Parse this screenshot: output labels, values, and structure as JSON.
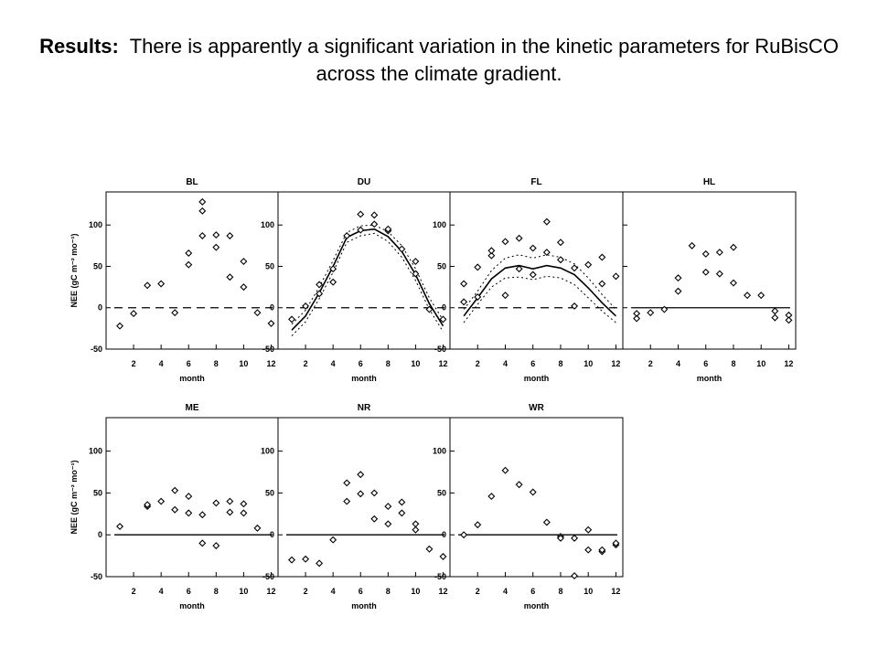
{
  "slide": {
    "title_lead": "Results:",
    "title_text": "There is apparently a significant variation in the kinetic parameters for RuBisCO across the climate gradient."
  },
  "chart_data": [
    {
      "type": "scatter",
      "title": "BL",
      "xlabel": "month",
      "ylabel": "NEE (gC m⁻² mo⁻¹)",
      "xlim": [
        0,
        12.5
      ],
      "ylim": [
        -50,
        140
      ],
      "xticks": [
        "2",
        "4",
        "6",
        "8",
        "10",
        "12"
      ],
      "yticks": [
        "-50",
        "0",
        "50",
        "100"
      ],
      "zero_line": "dashed",
      "points": [
        [
          1,
          -22
        ],
        [
          2,
          -7
        ],
        [
          3,
          27
        ],
        [
          4,
          29
        ],
        [
          5,
          -6
        ],
        [
          6,
          52
        ],
        [
          6,
          66
        ],
        [
          7,
          87
        ],
        [
          7,
          117
        ],
        [
          7,
          128
        ],
        [
          8,
          73
        ],
        [
          8,
          88
        ],
        [
          9,
          37
        ],
        [
          9,
          87
        ],
        [
          10,
          25
        ],
        [
          10,
          56
        ],
        [
          11,
          -6
        ],
        [
          12,
          -19
        ]
      ]
    },
    {
      "type": "scatter",
      "title": "DU",
      "xlabel": "month",
      "ylabel": "",
      "xlim": [
        0,
        12.5
      ],
      "ylim": [
        -50,
        140
      ],
      "xticks": [
        "2",
        "4",
        "6",
        "8",
        "10",
        "12"
      ],
      "yticks": [
        "-50",
        "0",
        "50",
        "100"
      ],
      "zero_line": "dashed",
      "points": [
        [
          1,
          -14
        ],
        [
          2,
          2
        ],
        [
          3,
          17
        ],
        [
          3,
          28
        ],
        [
          4,
          31
        ],
        [
          4,
          47
        ],
        [
          5,
          87
        ],
        [
          6,
          94
        ],
        [
          6,
          113
        ],
        [
          7,
          101
        ],
        [
          7,
          112
        ],
        [
          8,
          93
        ],
        [
          8,
          95
        ],
        [
          9,
          71
        ],
        [
          10,
          41
        ],
        [
          10,
          56
        ],
        [
          11,
          -2
        ],
        [
          12,
          -14
        ]
      ],
      "curves": [
        {
          "style": "solid",
          "x": [
            1,
            2,
            3,
            4,
            5,
            6,
            7,
            8,
            9,
            10,
            11,
            12
          ],
          "y": [
            -27,
            -10,
            18,
            50,
            85,
            93,
            95,
            86,
            68,
            40,
            5,
            -22
          ]
        },
        {
          "style": "dotted",
          "x": [
            1,
            2,
            3,
            4,
            5,
            6,
            7,
            8,
            9,
            10,
            11,
            12
          ],
          "y": [
            -20,
            -3,
            25,
            57,
            91,
            99,
            100,
            92,
            75,
            47,
            12,
            -15
          ]
        },
        {
          "style": "dotted",
          "x": [
            1,
            2,
            3,
            4,
            5,
            6,
            7,
            8,
            9,
            10,
            11,
            12
          ],
          "y": [
            -34,
            -17,
            11,
            43,
            79,
            87,
            90,
            80,
            61,
            33,
            -2,
            -29
          ]
        }
      ]
    },
    {
      "type": "scatter",
      "title": "FL",
      "xlabel": "month",
      "ylabel": "",
      "xlim": [
        0,
        12.5
      ],
      "ylim": [
        -50,
        140
      ],
      "xticks": [
        "2",
        "4",
        "6",
        "8",
        "10",
        "12"
      ],
      "yticks": [
        "-50",
        "0",
        "50",
        "100"
      ],
      "zero_line": "dashed",
      "points": [
        [
          1,
          7
        ],
        [
          1,
          29
        ],
        [
          2,
          13
        ],
        [
          2,
          49
        ],
        [
          3,
          63
        ],
        [
          3,
          69
        ],
        [
          4,
          15
        ],
        [
          4,
          80
        ],
        [
          5,
          47
        ],
        [
          5,
          84
        ],
        [
          6,
          40
        ],
        [
          6,
          72
        ],
        [
          7,
          67
        ],
        [
          7,
          104
        ],
        [
          8,
          58
        ],
        [
          8,
          79
        ],
        [
          9,
          2
        ],
        [
          9,
          48
        ],
        [
          10,
          52
        ],
        [
          11,
          29
        ],
        [
          11,
          61
        ],
        [
          12,
          38
        ]
      ],
      "curves": [
        {
          "style": "solid",
          "x": [
            1,
            2,
            3,
            4,
            5,
            6,
            7,
            8,
            9,
            10,
            11,
            12
          ],
          "y": [
            -10,
            12,
            35,
            48,
            51,
            47,
            51,
            48,
            40,
            24,
            6,
            -10
          ]
        },
        {
          "style": "dotted",
          "x": [
            1,
            2,
            3,
            4,
            5,
            6,
            7,
            8,
            9,
            10,
            11,
            12
          ],
          "y": [
            -2,
            20,
            45,
            60,
            64,
            60,
            64,
            61,
            53,
            36,
            16,
            -2
          ]
        },
        {
          "style": "dotted",
          "x": [
            1,
            2,
            3,
            4,
            5,
            6,
            7,
            8,
            9,
            10,
            11,
            12
          ],
          "y": [
            -18,
            4,
            25,
            36,
            37,
            34,
            38,
            36,
            28,
            12,
            -4,
            -18
          ]
        }
      ]
    },
    {
      "type": "scatter",
      "title": "HL",
      "xlabel": "month",
      "ylabel": "",
      "xlim": [
        0,
        12.5
      ],
      "ylim": [
        -50,
        140
      ],
      "xticks": [
        "2",
        "4",
        "6",
        "8",
        "10",
        "12"
      ],
      "yticks": [
        "-50",
        "0",
        "50",
        "100"
      ],
      "show_yticklabels": false,
      "zero_line": "solid",
      "points": [
        [
          1,
          -7
        ],
        [
          1,
          -13
        ],
        [
          2,
          -6
        ],
        [
          3,
          -2
        ],
        [
          4,
          20
        ],
        [
          4,
          36
        ],
        [
          5,
          75
        ],
        [
          6,
          43
        ],
        [
          6,
          65
        ],
        [
          7,
          41
        ],
        [
          7,
          67
        ],
        [
          8,
          30
        ],
        [
          8,
          73
        ],
        [
          9,
          15
        ],
        [
          10,
          15
        ],
        [
          11,
          -4
        ],
        [
          11,
          -12
        ],
        [
          12,
          -9
        ],
        [
          12,
          -15
        ]
      ]
    },
    {
      "type": "scatter",
      "title": "ME",
      "xlabel": "month",
      "ylabel": "NEE (gC m⁻² mo⁻¹)",
      "xlim": [
        0,
        12.5
      ],
      "ylim": [
        -50,
        140
      ],
      "xticks": [
        "2",
        "4",
        "6",
        "8",
        "10",
        "12"
      ],
      "yticks": [
        "-50",
        "0",
        "50",
        "100"
      ],
      "zero_line": "solid",
      "points": [
        [
          1,
          10
        ],
        [
          3,
          34
        ],
        [
          3,
          36
        ],
        [
          4,
          40
        ],
        [
          5,
          30
        ],
        [
          5,
          53
        ],
        [
          6,
          26
        ],
        [
          6,
          46
        ],
        [
          7,
          24
        ],
        [
          7,
          -10
        ],
        [
          8,
          -13
        ],
        [
          8,
          38
        ],
        [
          9,
          40
        ],
        [
          9,
          27
        ],
        [
          10,
          26
        ],
        [
          10,
          37
        ],
        [
          11,
          8
        ]
      ]
    },
    {
      "type": "scatter",
      "title": "NR",
      "xlabel": "month",
      "ylabel": "",
      "xlim": [
        0,
        12.5
      ],
      "ylim": [
        -50,
        140
      ],
      "xticks": [
        "2",
        "4",
        "6",
        "8",
        "10",
        "12"
      ],
      "yticks": [
        "-50",
        "0",
        "50",
        "100"
      ],
      "zero_line": "solid",
      "points": [
        [
          1,
          -30
        ],
        [
          2,
          -29
        ],
        [
          3,
          -34
        ],
        [
          4,
          -6
        ],
        [
          5,
          40
        ],
        [
          5,
          62
        ],
        [
          6,
          49
        ],
        [
          6,
          72
        ],
        [
          7,
          19
        ],
        [
          7,
          50
        ],
        [
          8,
          13
        ],
        [
          8,
          34
        ],
        [
          9,
          26
        ],
        [
          9,
          39
        ],
        [
          10,
          6
        ],
        [
          10,
          13
        ],
        [
          11,
          -17
        ],
        [
          12,
          -26
        ]
      ]
    },
    {
      "type": "scatter",
      "title": "WR",
      "xlabel": "month",
      "ylabel": "",
      "xlim": [
        0,
        12.5
      ],
      "ylim": [
        -50,
        140
      ],
      "xticks": [
        "2",
        "4",
        "6",
        "8",
        "10",
        "12"
      ],
      "yticks": [
        "-50",
        "0",
        "50",
        "100"
      ],
      "zero_line": "solid",
      "points": [
        [
          1,
          0
        ],
        [
          2,
          12
        ],
        [
          3,
          46
        ],
        [
          4,
          77
        ],
        [
          5,
          60
        ],
        [
          6,
          51
        ],
        [
          7,
          15
        ],
        [
          8,
          -2
        ],
        [
          8,
          -4
        ],
        [
          9,
          -49
        ],
        [
          9,
          -4
        ],
        [
          10,
          6
        ],
        [
          10,
          -18
        ],
        [
          11,
          -20
        ],
        [
          11,
          -18
        ],
        [
          12,
          -12
        ],
        [
          12,
          -10
        ]
      ]
    }
  ]
}
